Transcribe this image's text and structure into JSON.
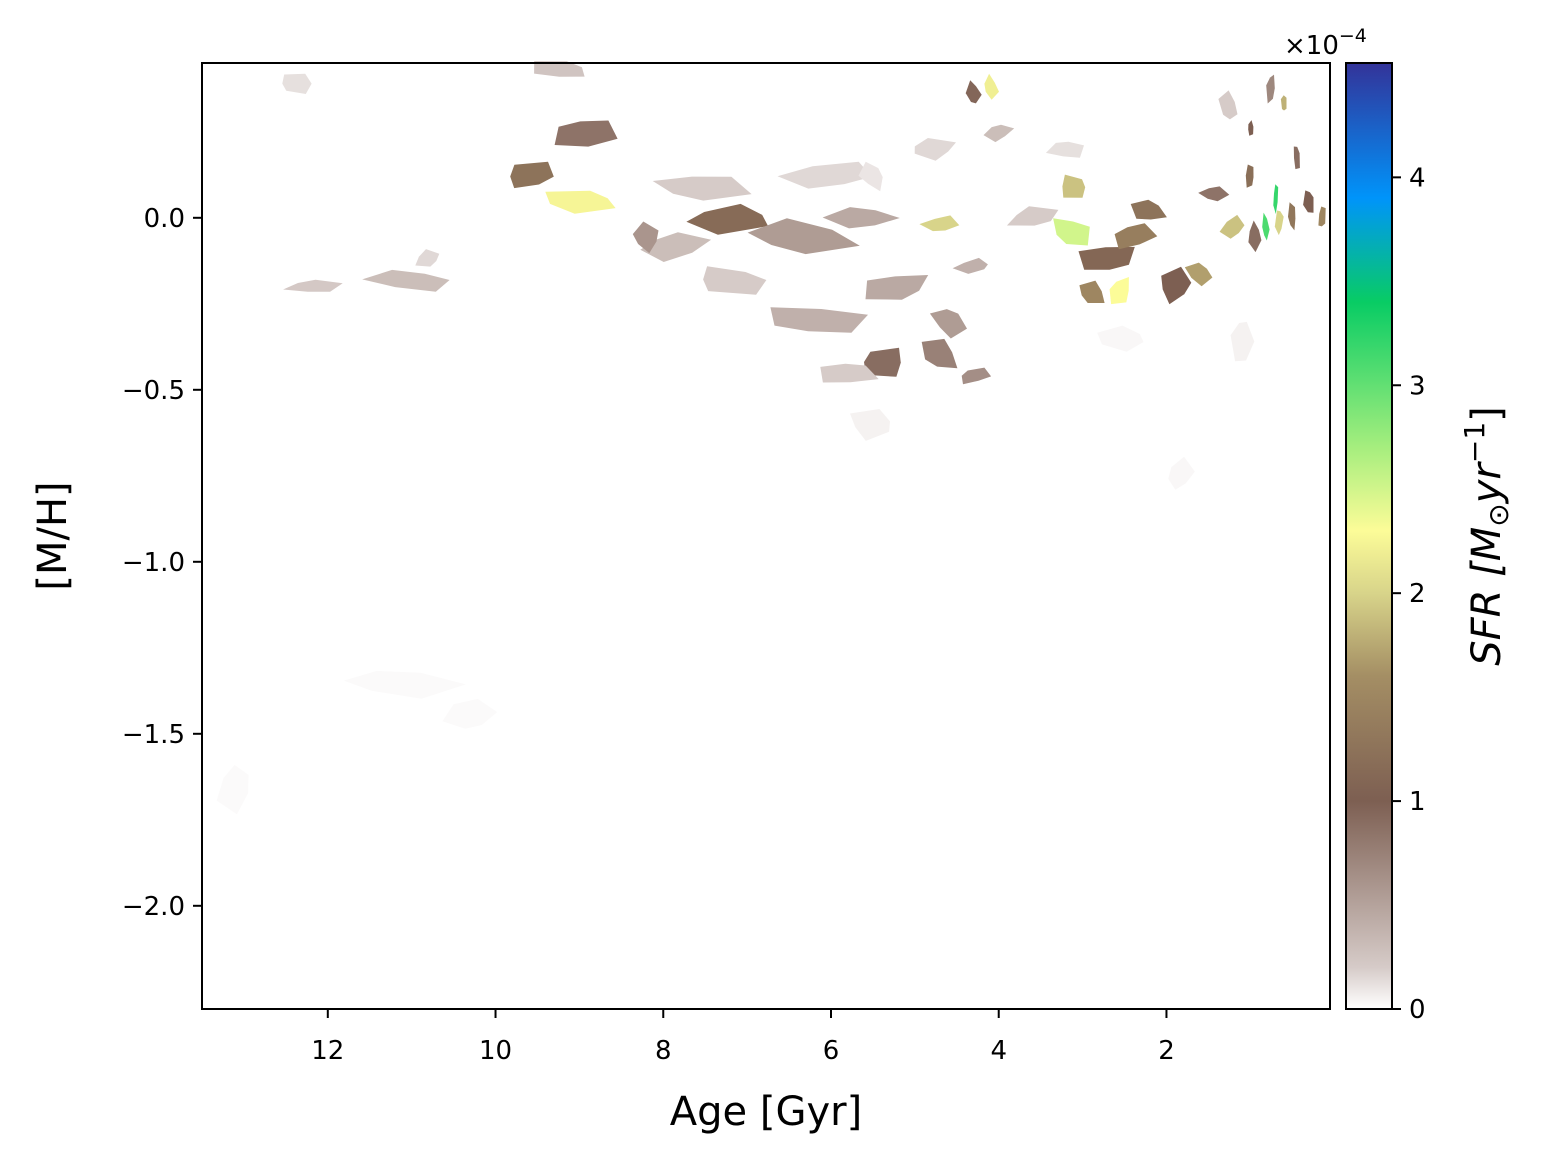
{
  "chart_data": {
    "type": "heatmap",
    "xlabel": "Age [Gyr]",
    "ylabel": "[M/H]",
    "x_inverted": true,
    "xlim": [
      13.5,
      0.05
    ],
    "ylim": [
      -2.3,
      0.45
    ],
    "xticks": [
      {
        "value": 12,
        "label": "12"
      },
      {
        "value": 10,
        "label": "10"
      },
      {
        "value": 8,
        "label": "8"
      },
      {
        "value": 6,
        "label": "6"
      },
      {
        "value": 4,
        "label": "4"
      },
      {
        "value": 2,
        "label": "2"
      }
    ],
    "yticks": [
      {
        "value": 0.0,
        "label": "0.0"
      },
      {
        "value": -0.5,
        "label": "−0.5"
      },
      {
        "value": -1.0,
        "label": "−1.0"
      },
      {
        "value": -1.5,
        "label": "−1.5"
      },
      {
        "value": -2.0,
        "label": "−2.0"
      }
    ],
    "grid": false,
    "colorbar": {
      "label_main": "SFR [M",
      "label_sub": "⊙",
      "label_rest": "yr",
      "label_sup": "−1",
      "label_close": "]",
      "offset_base": "×10",
      "offset_exp": "−4",
      "range": [
        0,
        4.55
      ],
      "ticks": [
        {
          "value": 0,
          "label": "0"
        },
        {
          "value": 1,
          "label": "1"
        },
        {
          "value": 2,
          "label": "2"
        },
        {
          "value": 3,
          "label": "3"
        },
        {
          "value": 4,
          "label": "4"
        }
      ],
      "colormap": "terrain_r",
      "stops": [
        {
          "v": 0.0,
          "color": "#ffffff"
        },
        {
          "v": 0.2,
          "color": "#d6cbc8"
        },
        {
          "v": 1.0,
          "color": "#7d5f52"
        },
        {
          "v": 1.6,
          "color": "#a48e64"
        },
        {
          "v": 2.0,
          "color": "#d8d48a"
        },
        {
          "v": 2.3,
          "color": "#fcfc98"
        },
        {
          "v": 2.7,
          "color": "#a6ee7e"
        },
        {
          "v": 3.4,
          "color": "#08cc64"
        },
        {
          "v": 3.9,
          "color": "#0094fa"
        },
        {
          "v": 4.55,
          "color": "#333399"
        }
      ]
    },
    "cells": [
      {
        "x": 12.4,
        "y": 0.39,
        "w": 0.55,
        "h": 0.07,
        "sfr": 0.12
      },
      {
        "x": 9.2,
        "y": 0.43,
        "w": 0.9,
        "h": 0.08,
        "sfr": 0.25
      },
      {
        "x": 8.95,
        "y": 0.25,
        "w": 0.9,
        "h": 0.12,
        "sfr": 0.85
      },
      {
        "x": 9.6,
        "y": 0.12,
        "w": 0.9,
        "h": 0.1,
        "sfr": 1.25
      },
      {
        "x": 8.95,
        "y": 0.05,
        "w": 1.2,
        "h": 0.08,
        "sfr": 2.25
      },
      {
        "x": 7.6,
        "y": 0.09,
        "w": 1.4,
        "h": 0.12,
        "sfr": 0.2
      },
      {
        "x": 6.0,
        "y": 0.12,
        "w": 1.3,
        "h": 0.1,
        "sfr": 0.15
      },
      {
        "x": 7.2,
        "y": 0.0,
        "w": 1.6,
        "h": 0.1,
        "sfr": 1.15
      },
      {
        "x": 6.4,
        "y": -0.06,
        "w": 1.6,
        "h": 0.12,
        "sfr": 0.55
      },
      {
        "x": 5.6,
        "y": 0.0,
        "w": 1.0,
        "h": 0.1,
        "sfr": 0.45
      },
      {
        "x": 7.9,
        "y": -0.08,
        "w": 1.0,
        "h": 0.1,
        "sfr": 0.3
      },
      {
        "x": 8.2,
        "y": -0.06,
        "w": 0.5,
        "h": 0.1,
        "sfr": 0.6
      },
      {
        "x": 11.0,
        "y": -0.18,
        "w": 1.2,
        "h": 0.08,
        "sfr": 0.3
      },
      {
        "x": 12.2,
        "y": -0.2,
        "w": 0.8,
        "h": 0.06,
        "sfr": 0.22
      },
      {
        "x": 10.8,
        "y": -0.12,
        "w": 0.4,
        "h": 0.06,
        "sfr": 0.15
      },
      {
        "x": 7.2,
        "y": -0.18,
        "w": 1.3,
        "h": 0.1,
        "sfr": 0.2
      },
      {
        "x": 6.2,
        "y": -0.3,
        "w": 1.4,
        "h": 0.12,
        "sfr": 0.4
      },
      {
        "x": 5.2,
        "y": -0.2,
        "w": 1.0,
        "h": 0.12,
        "sfr": 0.45
      },
      {
        "x": 5.4,
        "y": -0.42,
        "w": 0.8,
        "h": 0.1,
        "sfr": 0.9
      },
      {
        "x": 4.7,
        "y": -0.4,
        "w": 0.6,
        "h": 0.12,
        "sfr": 0.75
      },
      {
        "x": 5.8,
        "y": -0.45,
        "w": 0.8,
        "h": 0.1,
        "sfr": 0.2
      },
      {
        "x": 4.3,
        "y": -0.46,
        "w": 0.5,
        "h": 0.06,
        "sfr": 0.65
      },
      {
        "x": 5.5,
        "y": -0.6,
        "w": 0.8,
        "h": 0.1,
        "sfr": 0.05
      },
      {
        "x": 4.6,
        "y": -0.3,
        "w": 0.5,
        "h": 0.12,
        "sfr": 0.55
      },
      {
        "x": 4.7,
        "y": -0.02,
        "w": 0.5,
        "h": 0.07,
        "sfr": 2.0
      },
      {
        "x": 4.3,
        "y": -0.14,
        "w": 0.6,
        "h": 0.05,
        "sfr": 0.4
      },
      {
        "x": 4.1,
        "y": 0.38,
        "w": 0.25,
        "h": 0.08,
        "sfr": 2.2
      },
      {
        "x": 4.3,
        "y": 0.36,
        "w": 0.2,
        "h": 0.1,
        "sfr": 0.95
      },
      {
        "x": 4.0,
        "y": 0.25,
        "w": 0.4,
        "h": 0.07,
        "sfr": 0.3
      },
      {
        "x": 4.8,
        "y": 0.2,
        "w": 0.8,
        "h": 0.07,
        "sfr": 0.15
      },
      {
        "x": 5.5,
        "y": 0.12,
        "w": 0.4,
        "h": 0.1,
        "sfr": 0.1
      },
      {
        "x": 3.2,
        "y": 0.2,
        "w": 0.5,
        "h": 0.08,
        "sfr": 0.12
      },
      {
        "x": 3.6,
        "y": 0.0,
        "w": 0.8,
        "h": 0.08,
        "sfr": 0.2
      },
      {
        "x": 3.1,
        "y": 0.09,
        "w": 0.5,
        "h": 0.08,
        "sfr": 1.9
      },
      {
        "x": 3.15,
        "y": -0.04,
        "w": 0.6,
        "h": 0.12,
        "sfr": 2.5
      },
      {
        "x": 2.7,
        "y": -0.12,
        "w": 0.8,
        "h": 0.12,
        "sfr": 1.1
      },
      {
        "x": 2.55,
        "y": -0.21,
        "w": 0.4,
        "h": 0.1,
        "sfr": 2.3
      },
      {
        "x": 2.9,
        "y": -0.22,
        "w": 0.45,
        "h": 0.08,
        "sfr": 1.5
      },
      {
        "x": 2.2,
        "y": 0.02,
        "w": 0.5,
        "h": 0.1,
        "sfr": 1.25
      },
      {
        "x": 2.4,
        "y": -0.05,
        "w": 0.6,
        "h": 0.1,
        "sfr": 1.4
      },
      {
        "x": 1.9,
        "y": -0.2,
        "w": 0.6,
        "h": 0.12,
        "sfr": 1.0
      },
      {
        "x": 1.6,
        "y": -0.16,
        "w": 0.4,
        "h": 0.08,
        "sfr": 1.7
      },
      {
        "x": 1.45,
        "y": 0.07,
        "w": 0.4,
        "h": 0.07,
        "sfr": 0.85
      },
      {
        "x": 1.2,
        "y": -0.03,
        "w": 0.35,
        "h": 0.08,
        "sfr": 1.9
      },
      {
        "x": 0.95,
        "y": -0.05,
        "w": 0.25,
        "h": 0.1,
        "sfr": 0.9
      },
      {
        "x": 0.82,
        "y": -0.03,
        "w": 0.1,
        "h": 0.1,
        "sfr": 3.1
      },
      {
        "x": 0.65,
        "y": -0.01,
        "w": 0.12,
        "h": 0.12,
        "sfr": 2.0
      },
      {
        "x": 0.7,
        "y": 0.06,
        "w": 0.08,
        "h": 0.1,
        "sfr": 3.2
      },
      {
        "x": 0.5,
        "y": 0.0,
        "w": 0.15,
        "h": 0.1,
        "sfr": 1.3
      },
      {
        "x": 0.3,
        "y": 0.05,
        "w": 0.15,
        "h": 0.1,
        "sfr": 1.0
      },
      {
        "x": 0.15,
        "y": 0.0,
        "w": 0.12,
        "h": 0.1,
        "sfr": 1.5
      },
      {
        "x": 1.0,
        "y": 0.12,
        "w": 0.15,
        "h": 0.08,
        "sfr": 1.2
      },
      {
        "x": 0.45,
        "y": 0.18,
        "w": 0.12,
        "h": 0.1,
        "sfr": 0.9
      },
      {
        "x": 0.6,
        "y": 0.33,
        "w": 0.08,
        "h": 0.07,
        "sfr": 1.8
      },
      {
        "x": 0.75,
        "y": 0.38,
        "w": 0.15,
        "h": 0.12,
        "sfr": 0.7
      },
      {
        "x": 1.0,
        "y": 0.26,
        "w": 0.1,
        "h": 0.05,
        "sfr": 1.0
      },
      {
        "x": 1.25,
        "y": 0.32,
        "w": 0.3,
        "h": 0.12,
        "sfr": 0.2
      },
      {
        "x": 1.1,
        "y": -0.35,
        "w": 0.3,
        "h": 0.18,
        "sfr": 0.05
      },
      {
        "x": 1.85,
        "y": -0.75,
        "w": 0.45,
        "h": 0.12,
        "sfr": 0.03
      },
      {
        "x": 2.5,
        "y": -0.35,
        "w": 0.8,
        "h": 0.08,
        "sfr": 0.03
      },
      {
        "x": 11.2,
        "y": -1.35,
        "w": 1.8,
        "h": 0.12,
        "sfr": 0.02
      },
      {
        "x": 10.3,
        "y": -1.45,
        "w": 0.7,
        "h": 0.12,
        "sfr": 0.02
      },
      {
        "x": 13.1,
        "y": -1.65,
        "w": 0.6,
        "h": 0.18,
        "sfr": 0.02
      }
    ]
  }
}
